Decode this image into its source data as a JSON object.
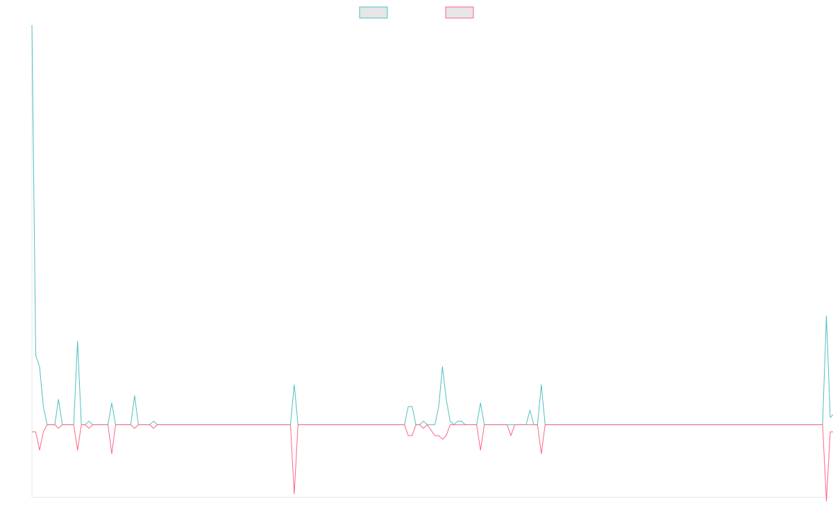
{
  "chart_data": {
    "type": "line",
    "title": "",
    "xlabel": "",
    "ylabel": "",
    "grid": false,
    "legend": "top-center",
    "ylim": [
      -20,
      110
    ],
    "x_count": 210,
    "series": [
      {
        "color": "#4bc0c0",
        "points": [
          [
            0,
            110
          ],
          [
            1,
            19
          ],
          [
            2,
            16
          ],
          [
            3,
            5
          ],
          [
            4,
            0
          ],
          [
            6,
            0
          ],
          [
            7,
            7
          ],
          [
            8,
            0
          ],
          [
            11,
            0
          ],
          [
            12,
            23
          ],
          [
            13,
            0
          ],
          [
            14,
            0
          ],
          [
            15,
            1
          ],
          [
            16,
            0
          ],
          [
            20,
            0
          ],
          [
            21,
            6
          ],
          [
            22,
            0
          ],
          [
            26,
            0
          ],
          [
            27,
            8
          ],
          [
            28,
            0
          ],
          [
            31,
            0
          ],
          [
            32,
            1
          ],
          [
            33,
            0
          ],
          [
            40,
            0
          ],
          [
            41,
            0
          ],
          [
            42,
            0
          ],
          [
            50,
            0
          ],
          [
            60,
            0
          ],
          [
            68,
            0
          ],
          [
            69,
            11
          ],
          [
            70,
            0
          ],
          [
            90,
            0
          ],
          [
            91,
            0
          ],
          [
            92,
            0
          ],
          [
            93,
            0
          ],
          [
            94,
            0
          ],
          [
            95,
            0
          ],
          [
            96,
            0
          ],
          [
            97,
            0
          ],
          [
            98,
            0
          ],
          [
            99,
            5
          ],
          [
            100,
            5
          ],
          [
            101,
            0
          ],
          [
            102,
            0
          ],
          [
            103,
            1
          ],
          [
            104,
            0
          ],
          [
            106,
            0
          ],
          [
            107,
            5
          ],
          [
            108,
            16
          ],
          [
            109,
            7
          ],
          [
            110,
            1
          ],
          [
            111,
            0
          ],
          [
            112,
            1
          ],
          [
            113,
            1
          ],
          [
            114,
            0
          ],
          [
            117,
            0
          ],
          [
            118,
            6
          ],
          [
            119,
            0
          ],
          [
            124,
            0
          ],
          [
            125,
            0
          ],
          [
            126,
            0
          ],
          [
            127,
            0
          ],
          [
            128,
            0
          ],
          [
            129,
            0
          ],
          [
            130,
            0
          ],
          [
            131,
            4
          ],
          [
            132,
            0
          ],
          [
            133,
            0
          ],
          [
            134,
            11
          ],
          [
            135,
            0
          ],
          [
            136,
            0
          ],
          [
            150,
            0
          ],
          [
            180,
            0
          ],
          [
            200,
            0
          ],
          [
            208,
            0
          ],
          [
            209,
            30
          ],
          [
            210,
            2
          ],
          [
            211,
            3
          ]
        ]
      },
      {
        "color": "#ff6384",
        "points": [
          [
            0,
            -2
          ],
          [
            1,
            -2
          ],
          [
            2,
            -7
          ],
          [
            3,
            -2
          ],
          [
            4,
            0
          ],
          [
            6,
            0
          ],
          [
            7,
            -1
          ],
          [
            8,
            0
          ],
          [
            11,
            0
          ],
          [
            12,
            -7
          ],
          [
            13,
            0
          ],
          [
            14,
            0
          ],
          [
            15,
            -1
          ],
          [
            16,
            0
          ],
          [
            20,
            0
          ],
          [
            21,
            -8
          ],
          [
            22,
            0
          ],
          [
            26,
            0
          ],
          [
            27,
            -1
          ],
          [
            28,
            0
          ],
          [
            31,
            0
          ],
          [
            32,
            -1
          ],
          [
            33,
            0
          ],
          [
            40,
            0
          ],
          [
            41,
            0
          ],
          [
            42,
            0
          ],
          [
            50,
            0
          ],
          [
            60,
            0
          ],
          [
            68,
            0
          ],
          [
            69,
            -19
          ],
          [
            70,
            0
          ],
          [
            90,
            0
          ],
          [
            91,
            0
          ],
          [
            92,
            0
          ],
          [
            93,
            0
          ],
          [
            94,
            0
          ],
          [
            95,
            0
          ],
          [
            96,
            0
          ],
          [
            97,
            0
          ],
          [
            98,
            0
          ],
          [
            99,
            -3
          ],
          [
            100,
            -3
          ],
          [
            101,
            0
          ],
          [
            102,
            0
          ],
          [
            103,
            -1
          ],
          [
            104,
            0
          ],
          [
            106,
            -3
          ],
          [
            107,
            -3
          ],
          [
            108,
            -4
          ],
          [
            109,
            -3
          ],
          [
            110,
            0
          ],
          [
            111,
            0
          ],
          [
            112,
            0
          ],
          [
            113,
            0
          ],
          [
            114,
            0
          ],
          [
            117,
            0
          ],
          [
            118,
            -7
          ],
          [
            119,
            0
          ],
          [
            124,
            0
          ],
          [
            125,
            0
          ],
          [
            126,
            -3
          ],
          [
            127,
            0
          ],
          [
            128,
            0
          ],
          [
            129,
            0
          ],
          [
            130,
            0
          ],
          [
            131,
            0
          ],
          [
            132,
            0
          ],
          [
            133,
            0
          ],
          [
            134,
            -8
          ],
          [
            135,
            0
          ],
          [
            136,
            0
          ],
          [
            150,
            0
          ],
          [
            180,
            0
          ],
          [
            200,
            0
          ],
          [
            208,
            0
          ],
          [
            209,
            -21
          ],
          [
            210,
            -2
          ],
          [
            211,
            -2
          ]
        ]
      }
    ]
  }
}
